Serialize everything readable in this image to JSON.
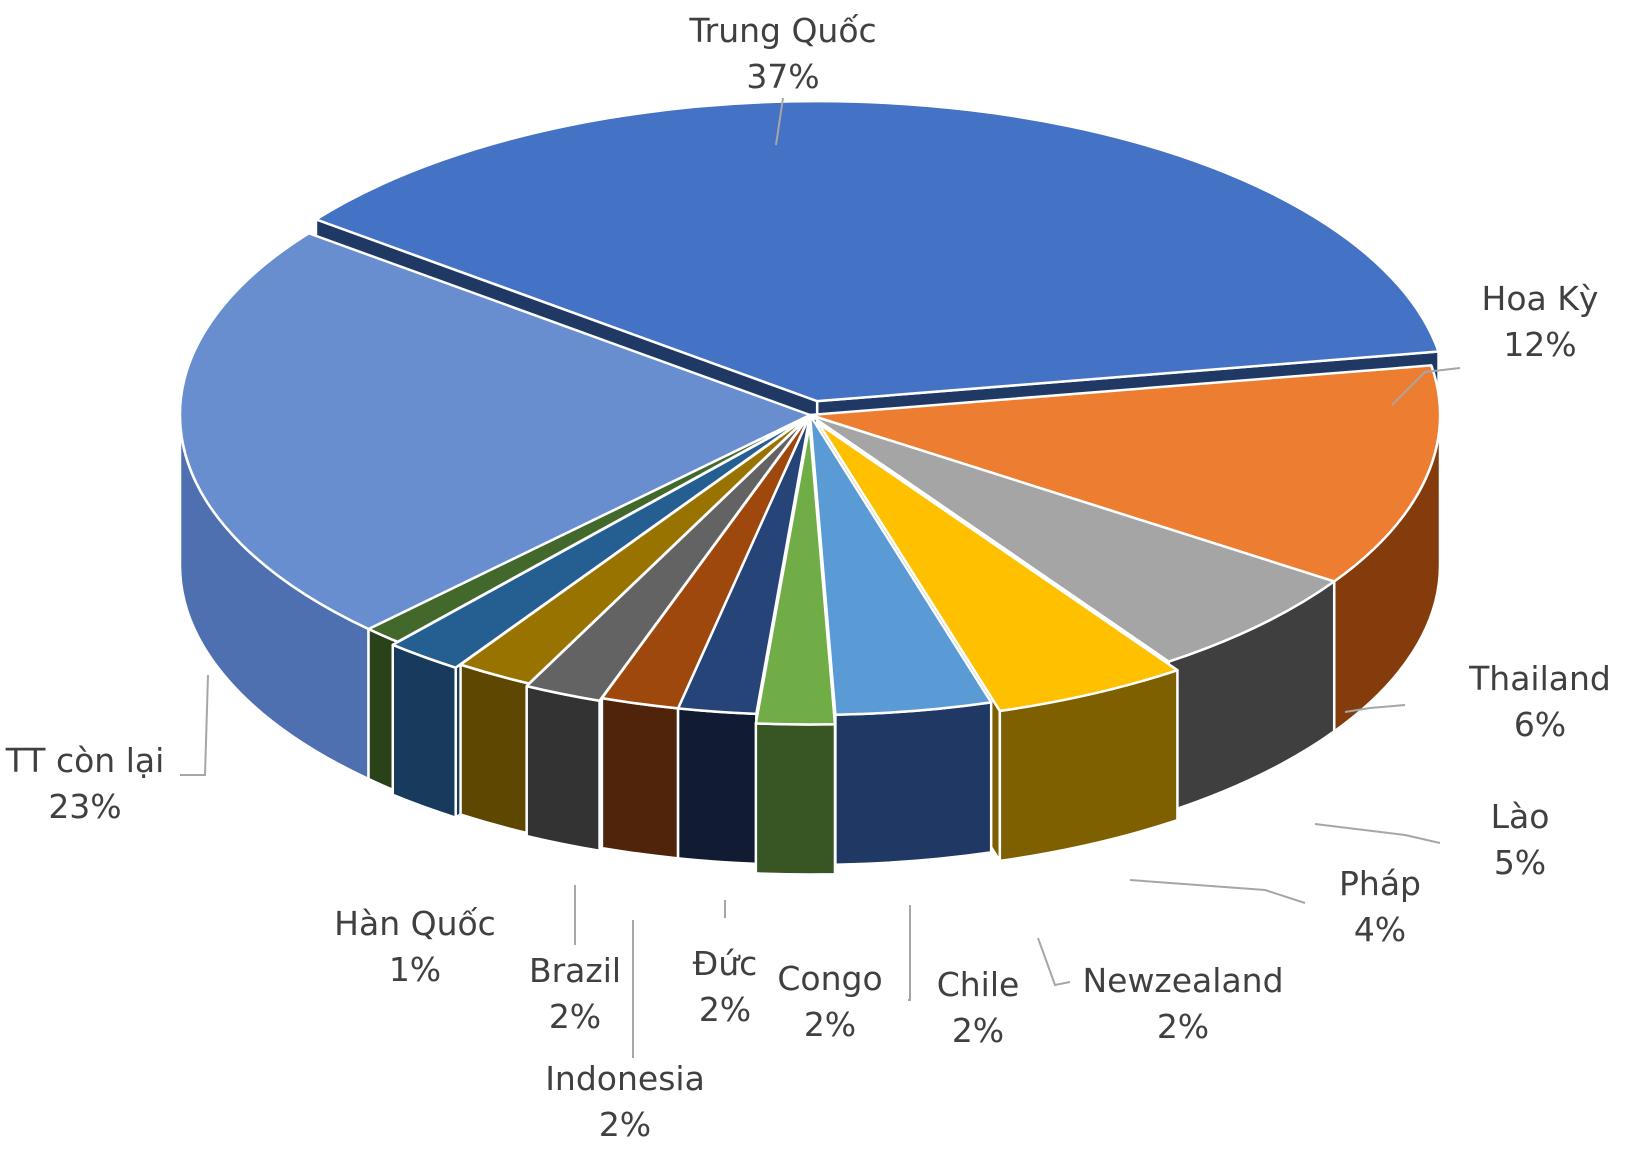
{
  "chart_data": {
    "type": "pie",
    "title": "",
    "style": "3d-exploded",
    "legend": "none",
    "slices": [
      {
        "label": "Trung Quốc",
        "value_label": "37%",
        "value": 37,
        "color": "#4472C4",
        "side": "#1F3864"
      },
      {
        "label": "Hoa Kỳ",
        "value_label": "12%",
        "value": 12,
        "color": "#ED7D31",
        "side": "#843C0C"
      },
      {
        "label": "Thailand",
        "value_label": "6%",
        "value": 6,
        "color": "#A5A5A5",
        "side": "#3F3F3F"
      },
      {
        "label": "Lào",
        "value_label": "5%",
        "value": 5,
        "color": "#FFC000",
        "side": "#7F6000"
      },
      {
        "label": "Pháp",
        "value_label": "4%",
        "value": 4,
        "color": "#5B9BD5",
        "side": "#203864"
      },
      {
        "label": "Newzealand",
        "value_label": "2%",
        "value": 2,
        "color": "#70AD47",
        "side": "#375623"
      },
      {
        "label": "Chile",
        "value_label": "2%",
        "value": 2,
        "color": "#264478",
        "side": "#111C33"
      },
      {
        "label": "Congo",
        "value_label": "2%",
        "value": 2,
        "color": "#9E480E",
        "side": "#4F240A"
      },
      {
        "label": "Đức",
        "value_label": "2%",
        "value": 2,
        "color": "#636363",
        "side": "#333333"
      },
      {
        "label": "Indonesia",
        "value_label": "2%",
        "value": 2,
        "color": "#997300",
        "side": "#5E4700"
      },
      {
        "label": "Brazil",
        "value_label": "2%",
        "value": 2,
        "color": "#255E91",
        "side": "#183A5C"
      },
      {
        "label": "Hàn Quốc",
        "value_label": "1%",
        "value": 1,
        "color": "#43682B",
        "side": "#2A4219"
      },
      {
        "label": "TT còn lại",
        "value_label": "23%",
        "value": 23,
        "color": "#698ED0",
        "side": "#4E70B0"
      }
    ]
  }
}
